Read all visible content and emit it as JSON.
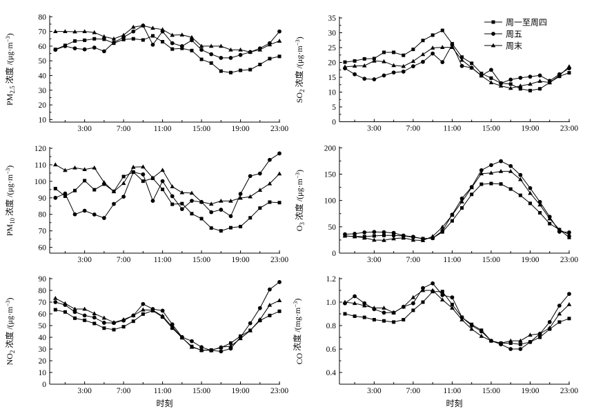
{
  "legend": {
    "placement": "top-right of SO2 panel",
    "items": [
      {
        "label": "周一至周四",
        "marker": "square"
      },
      {
        "label": "周五",
        "marker": "circle"
      },
      {
        "label": "周末",
        "marker": "triangle"
      }
    ]
  },
  "colors": {
    "series": "#000000",
    "background": "#ffffff"
  },
  "chart_data": [
    {
      "type": "line",
      "id": "pm25",
      "ylabel": {
        "main": "PM",
        "sub": "2.5",
        "text": " 浓度 /(μg·m",
        "sup": "−3",
        "close": ")"
      },
      "xlabel": "",
      "ylim": [
        8.3,
        80
      ],
      "yticks": [
        10,
        20,
        30,
        40,
        50,
        60,
        70,
        80
      ],
      "yminor": 5,
      "xticklabels": [
        "3:00",
        "7:00",
        "11:00",
        "15:00",
        "19:00",
        "23:00"
      ],
      "x": [
        "0:00",
        "1:00",
        "2:00",
        "3:00",
        "4:00",
        "5:00",
        "6:00",
        "7:00",
        "8:00",
        "9:00",
        "10:00",
        "11:00",
        "12:00",
        "13:00",
        "14:00",
        "15:00",
        "16:00",
        "17:00",
        "18:00",
        "19:00",
        "20:00",
        "21:00",
        "22:00",
        "23:00"
      ],
      "series": [
        {
          "name": "周一至周四",
          "marker": "square",
          "values": [
            57.8,
            60.5,
            63.5,
            64,
            65,
            64.7,
            62,
            64.5,
            65,
            64.2,
            67,
            63,
            58,
            58.5,
            57,
            51,
            48.5,
            43,
            42,
            43.5,
            44,
            47.5,
            51.5,
            53
          ]
        },
        {
          "name": "周五",
          "marker": "circle",
          "values": [
            57.5,
            60,
            58.5,
            57.8,
            59,
            56.5,
            62.5,
            66,
            70,
            74,
            61,
            70,
            62,
            60,
            64,
            57.5,
            54.5,
            52,
            52,
            54,
            56,
            58.5,
            62,
            70
          ]
        },
        {
          "name": "周末",
          "marker": "triangle",
          "values": [
            70,
            70,
            69.8,
            70,
            69.3,
            66.5,
            65,
            67.5,
            73,
            74,
            72.3,
            71.3,
            67.5,
            67.7,
            66,
            60,
            60,
            60,
            57.5,
            57.5,
            56,
            57.5,
            61,
            63.5
          ]
        }
      ]
    },
    {
      "type": "line",
      "id": "so2",
      "ylabel": {
        "main": "SO",
        "sub": "2",
        "text": " 浓度 /(μg·m",
        "sup": "−3",
        "close": ")"
      },
      "xlabel": "",
      "ylim": [
        0,
        35
      ],
      "yticks": [
        0,
        5,
        10,
        15,
        20,
        25,
        30,
        35
      ],
      "yminor": 2.5,
      "xticklabels": [
        "3:00",
        "7:00",
        "11:00",
        "15:00",
        "19:00",
        "23:00"
      ],
      "x": [
        "0:00",
        "1:00",
        "2:00",
        "3:00",
        "4:00",
        "5:00",
        "6:00",
        "7:00",
        "8:00",
        "9:00",
        "10:00",
        "11:00",
        "12:00",
        "13:00",
        "14:00",
        "15:00",
        "16:00",
        "17:00",
        "18:00",
        "19:00",
        "20:00",
        "21:00",
        "22:00",
        "23:00"
      ],
      "series": [
        {
          "name": "周一至周四",
          "marker": "square",
          "values": [
            20.1,
            20.5,
            21.2,
            21.3,
            23.4,
            23.4,
            22.4,
            24.4,
            27.4,
            29.2,
            30.8,
            26.3,
            21.8,
            19.7,
            16.3,
            14.7,
            13,
            12.7,
            11.1,
            10.5,
            11.1,
            13.2,
            15.3,
            16.5
          ]
        },
        {
          "name": "周五",
          "marker": "circle",
          "values": [
            18,
            16,
            14.5,
            14.3,
            15.6,
            16.6,
            16.9,
            18.7,
            20.2,
            23,
            20.1,
            26,
            18.8,
            18.2,
            15.6,
            17.5,
            13,
            14.2,
            14.8,
            15.2,
            15.6,
            13.8,
            16,
            18
          ]
        },
        {
          "name": "周末",
          "marker": "triangle",
          "values": [
            18.5,
            18.8,
            18.9,
            20.5,
            20.3,
            19,
            18.7,
            20.4,
            22.7,
            24.9,
            25.1,
            25.1,
            20.8,
            18.2,
            15.5,
            13.2,
            12.1,
            11.3,
            12.1,
            12.7,
            13.7,
            13.2,
            15.6,
            18.6
          ]
        }
      ]
    },
    {
      "type": "line",
      "id": "pm10",
      "ylabel": {
        "main": "PM",
        "sub": "10",
        "text": " 浓度 /(μg·m",
        "sup": "−3",
        "close": ")"
      },
      "xlabel": "",
      "ylim": [
        56.5,
        120
      ],
      "yticks": [
        60,
        70,
        80,
        90,
        100,
        110,
        120
      ],
      "yminor": 5,
      "xticklabels": [
        "3:00",
        "7:00",
        "11:00",
        "15:00",
        "19:00",
        "23:00"
      ],
      "x": [
        "0:00",
        "1:00",
        "2:00",
        "3:00",
        "4:00",
        "5:00",
        "6:00",
        "7:00",
        "8:00",
        "9:00",
        "10:00",
        "11:00",
        "12:00",
        "13:00",
        "14:00",
        "15:00",
        "16:00",
        "17:00",
        "18:00",
        "19:00",
        "20:00",
        "21:00",
        "22:00",
        "23:00"
      ],
      "series": [
        {
          "name": "周一至周四",
          "marker": "square",
          "values": [
            95.6,
            91,
            94.4,
            100.4,
            94.9,
            98.3,
            93.9,
            102.9,
            105.6,
            100.1,
            101.8,
            95.1,
            86.1,
            86.5,
            80.4,
            77.4,
            71.7,
            70,
            71.9,
            72.6,
            77.9,
            83.8,
            87.4,
            87.1
          ]
        },
        {
          "name": "周五",
          "marker": "circle",
          "values": [
            90,
            92.6,
            80,
            82.2,
            79.9,
            77.8,
            86.3,
            90.7,
            105.6,
            104.2,
            88.2,
            100.1,
            91,
            83.2,
            88.2,
            87.5,
            81.3,
            82.8,
            78.9,
            92.4,
            103.2,
            104.7,
            113,
            116.9
          ]
        },
        {
          "name": "周末",
          "marker": "triangle",
          "values": [
            110.1,
            106.7,
            108.2,
            107.2,
            108.2,
            99.3,
            93.8,
            98.8,
            108.6,
            108.8,
            102.1,
            106.8,
            96.8,
            93.2,
            92.9,
            87.5,
            86.3,
            88.1,
            88.1,
            89.9,
            90.7,
            94.7,
            98.6,
            104.6
          ]
        }
      ]
    },
    {
      "type": "line",
      "id": "o3",
      "ylabel": {
        "main": "O",
        "sub": "3",
        "text": " 浓度 /(μg·m",
        "sup": "−3",
        "close": ")"
      },
      "xlabel": "",
      "ylim": [
        0,
        200
      ],
      "yticks": [
        0,
        50,
        100,
        150,
        200
      ],
      "yminor": 25,
      "xticklabels": [
        "3:00",
        "7:00",
        "11:00",
        "15:00",
        "19:00",
        "23:00"
      ],
      "x": [
        "0:00",
        "1:00",
        "2:00",
        "3:00",
        "4:00",
        "5:00",
        "6:00",
        "7:00",
        "8:00",
        "9:00",
        "10:00",
        "11:00",
        "12:00",
        "13:00",
        "14:00",
        "15:00",
        "16:00",
        "17:00",
        "18:00",
        "19:00",
        "20:00",
        "21:00",
        "22:00",
        "23:00"
      ],
      "series": [
        {
          "name": "周一至周四",
          "marker": "square",
          "values": [
            32.8,
            31.5,
            31.5,
            32.8,
            33.7,
            33.7,
            32.8,
            30.2,
            27.6,
            28.4,
            40.3,
            61.3,
            85.8,
            111.6,
            130.9,
            132.2,
            131.3,
            121.7,
            109.8,
            94.5,
            76.6,
            56,
            44.6,
            29.8
          ]
        },
        {
          "name": "周五",
          "marker": "circle",
          "values": [
            35.9,
            36.8,
            39.4,
            40.3,
            39.8,
            38.5,
            33.3,
            31.1,
            27.1,
            28.4,
            42.5,
            73.1,
            103.7,
            125.6,
            157.5,
            167.2,
            174.6,
            165.4,
            148.4,
            123.4,
            97.2,
            69.1,
            40.7,
            39.4
          ]
        },
        {
          "name": "周末",
          "marker": "triangle",
          "values": [
            32.8,
            31.5,
            28.9,
            24.9,
            24.5,
            27.6,
            28.9,
            24.9,
            24.1,
            31.9,
            49.5,
            72.2,
            97.6,
            124.7,
            151,
            152.3,
            155.4,
            155.4,
            140,
            113.8,
            91.9,
            65.6,
            44.6,
            35
          ]
        }
      ]
    },
    {
      "type": "line",
      "id": "no2",
      "ylabel": {
        "main": "NO",
        "sub": "2",
        "text": " 浓度 /(μg·m",
        "sup": "−3",
        "close": ")"
      },
      "xlabel": "时刻",
      "ylim": [
        0,
        90
      ],
      "yticks": [
        0,
        10,
        20,
        30,
        40,
        50,
        60,
        70,
        80,
        90
      ],
      "yminor": 0,
      "xticklabels": [
        "3:00",
        "7:00",
        "11:00",
        "15:00",
        "19:00",
        "23:00"
      ],
      "x": [
        "0:00",
        "1:00",
        "2:00",
        "3:00",
        "4:00",
        "5:00",
        "6:00",
        "7:00",
        "8:00",
        "9:00",
        "10:00",
        "11:00",
        "12:00",
        "13:00",
        "14:00",
        "15:00",
        "16:00",
        "17:00",
        "18:00",
        "19:00",
        "20:00",
        "21:00",
        "22:00",
        "23:00"
      ],
      "series": [
        {
          "name": "周一至周四",
          "marker": "square",
          "values": [
            63.5,
            61.6,
            56.3,
            54.5,
            51.8,
            47.8,
            46.5,
            49,
            53.7,
            59.8,
            62.7,
            57.3,
            47.8,
            39.6,
            32.2,
            28.8,
            29.2,
            31.2,
            35.1,
            41,
            45.9,
            54.3,
            58.6,
            62.2
          ]
        },
        {
          "name": "周五",
          "marker": "circle",
          "values": [
            70,
            67.6,
            61.6,
            58.6,
            56.9,
            52.4,
            52.2,
            54.3,
            58.6,
            68.4,
            64.1,
            62.7,
            51,
            40.2,
            36.7,
            31.6,
            28.8,
            28,
            30.4,
            40.2,
            52,
            64.9,
            80.8,
            87.1
          ]
        },
        {
          "name": "周末",
          "marker": "triangle",
          "values": [
            73.3,
            68.8,
            64.1,
            64.1,
            60.2,
            56.5,
            52.7,
            55.1,
            58.6,
            63.5,
            63.1,
            58.2,
            48.8,
            39.8,
            31.6,
            29.2,
            28.8,
            31.6,
            32.4,
            39,
            45.7,
            55.1,
            67.5,
            71.4
          ]
        }
      ]
    },
    {
      "type": "line",
      "id": "co",
      "ylabel": {
        "main": "CO",
        "sub": "",
        "text": " 浓度 /(mg·m",
        "sup": "−3",
        "close": ")"
      },
      "xlabel": "时刻",
      "ylim": [
        0.3,
        1.2
      ],
      "yticks": [
        0.4,
        0.6,
        0.8,
        1.0,
        1.2
      ],
      "yminor": 0.1,
      "xticklabels": [
        "3:00",
        "7:00",
        "11:00",
        "15:00",
        "19:00",
        "23:00"
      ],
      "x": [
        "0:00",
        "1:00",
        "2:00",
        "3:00",
        "4:00",
        "5:00",
        "6:00",
        "7:00",
        "8:00",
        "9:00",
        "10:00",
        "11:00",
        "12:00",
        "13:00",
        "14:00",
        "15:00",
        "16:00",
        "17:00",
        "18:00",
        "19:00",
        "20:00",
        "21:00",
        "22:00",
        "23:00"
      ],
      "series": [
        {
          "name": "周一至周四",
          "marker": "square",
          "values": [
            0.9,
            0.88,
            0.87,
            0.85,
            0.84,
            0.83,
            0.85,
            0.93,
            1.0,
            1.09,
            1.09,
            0.98,
            0.87,
            0.81,
            0.76,
            0.67,
            0.65,
            0.65,
            0.64,
            0.66,
            0.7,
            0.77,
            0.83,
            0.86
          ]
        },
        {
          "name": "周五",
          "marker": "circle",
          "values": [
            0.99,
            1.05,
            0.99,
            0.94,
            0.91,
            0.91,
            0.96,
            0.99,
            1.12,
            1.16,
            1.06,
            1.04,
            0.87,
            0.8,
            0.75,
            0.67,
            0.64,
            0.6,
            0.6,
            0.66,
            0.73,
            0.83,
            0.97,
            1.07
          ]
        },
        {
          "name": "周末",
          "marker": "triangle",
          "values": [
            1.0,
            0.99,
            0.97,
            0.95,
            0.95,
            0.91,
            0.96,
            1.04,
            1.1,
            1.1,
            1.02,
            0.95,
            0.85,
            0.77,
            0.71,
            0.67,
            0.65,
            0.67,
            0.67,
            0.72,
            0.73,
            0.78,
            0.9,
            0.98
          ]
        }
      ]
    }
  ]
}
